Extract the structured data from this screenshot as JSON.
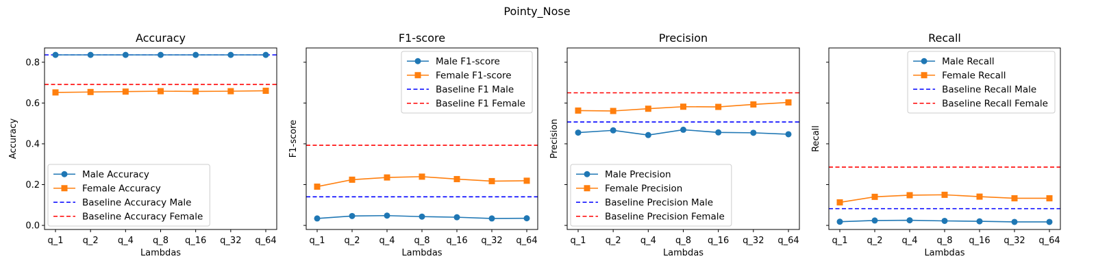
{
  "suptitle": "Pointy_Nose",
  "colors": {
    "male": "#1f77b4",
    "female": "#ff7f0e",
    "baseline_male": "#0000ff",
    "baseline_female": "#ff0000"
  },
  "chart_data": [
    {
      "type": "line",
      "title": "Accuracy",
      "xlabel": "Lambdas",
      "ylabel": "Accuracy",
      "categories": [
        "q_1",
        "q_2",
        "q_4",
        "q_8",
        "q_16",
        "q_32",
        "q_64"
      ],
      "ylim": [
        -0.02,
        0.87
      ],
      "yticks": [
        0.0,
        0.2,
        0.4,
        0.6,
        0.8
      ],
      "ytick_labels": [
        "0.0",
        "0.2",
        "0.4",
        "0.6",
        "0.8"
      ],
      "legend_position": "lower-left",
      "series": [
        {
          "name": "Male Accuracy",
          "marker": "circle",
          "color_key": "male",
          "values": [
            0.836,
            0.836,
            0.836,
            0.836,
            0.836,
            0.836,
            0.836
          ]
        },
        {
          "name": "Female Accuracy",
          "marker": "square",
          "color_key": "female",
          "values": [
            0.652,
            0.654,
            0.656,
            0.658,
            0.657,
            0.658,
            0.66
          ]
        }
      ],
      "baselines": [
        {
          "name": "Baseline Accuracy Male",
          "color_key": "baseline_male",
          "value": 0.836
        },
        {
          "name": "Baseline Accuracy Female",
          "color_key": "baseline_female",
          "value": 0.691
        }
      ]
    },
    {
      "type": "line",
      "title": "F1-score",
      "xlabel": "Lambdas",
      "ylabel": "F1-score",
      "categories": [
        "q_1",
        "q_2",
        "q_4",
        "q_8",
        "q_16",
        "q_32",
        "q_64"
      ],
      "ylim": [
        -0.02,
        0.87
      ],
      "yticks": [
        0.0,
        0.2,
        0.4,
        0.6,
        0.8
      ],
      "ytick_labels": [
        "",
        "",
        "",
        "",
        ""
      ],
      "legend_position": "upper-right",
      "series": [
        {
          "name": "Male F1-score",
          "marker": "circle",
          "color_key": "male",
          "values": [
            0.034,
            0.046,
            0.048,
            0.043,
            0.04,
            0.034,
            0.035
          ]
        },
        {
          "name": "Female F1-score",
          "marker": "square",
          "color_key": "female",
          "values": [
            0.19,
            0.224,
            0.235,
            0.239,
            0.227,
            0.217,
            0.219
          ]
        }
      ],
      "baselines": [
        {
          "name": "Baseline F1 Male",
          "color_key": "baseline_male",
          "value": 0.14
        },
        {
          "name": "Baseline F1 Female",
          "color_key": "baseline_female",
          "value": 0.393
        }
      ]
    },
    {
      "type": "line",
      "title": "Precision",
      "xlabel": "Lambdas",
      "ylabel": "Precision",
      "categories": [
        "q_1",
        "q_2",
        "q_4",
        "q_8",
        "q_16",
        "q_32",
        "q_64"
      ],
      "ylim": [
        -0.02,
        0.87
      ],
      "yticks": [
        0.0,
        0.2,
        0.4,
        0.6,
        0.8
      ],
      "ytick_labels": [
        "",
        "",
        "",
        "",
        ""
      ],
      "legend_position": "lower-left",
      "series": [
        {
          "name": "Male Precision",
          "marker": "circle",
          "color_key": "male",
          "values": [
            0.455,
            0.466,
            0.443,
            0.469,
            0.456,
            0.454,
            0.447
          ]
        },
        {
          "name": "Female Precision",
          "marker": "square",
          "color_key": "female",
          "values": [
            0.563,
            0.561,
            0.572,
            0.582,
            0.581,
            0.593,
            0.603
          ]
        }
      ],
      "baselines": [
        {
          "name": "Baseline Precision Male",
          "color_key": "baseline_male",
          "value": 0.507
        },
        {
          "name": "Baseline Precision Female",
          "color_key": "baseline_female",
          "value": 0.65
        }
      ]
    },
    {
      "type": "line",
      "title": "Recall",
      "xlabel": "Lambdas",
      "ylabel": "Recall",
      "categories": [
        "q_1",
        "q_2",
        "q_4",
        "q_8",
        "q_16",
        "q_32",
        "q_64"
      ],
      "ylim": [
        -0.02,
        0.87
      ],
      "yticks": [
        0.0,
        0.2,
        0.4,
        0.6,
        0.8
      ],
      "ytick_labels": [
        "",
        "",
        "",
        "",
        ""
      ],
      "legend_position": "upper-right",
      "series": [
        {
          "name": "Male Recall",
          "marker": "circle",
          "color_key": "male",
          "values": [
            0.018,
            0.024,
            0.025,
            0.022,
            0.02,
            0.017,
            0.017
          ]
        },
        {
          "name": "Female Recall",
          "marker": "square",
          "color_key": "female",
          "values": [
            0.113,
            0.14,
            0.148,
            0.15,
            0.141,
            0.133,
            0.133
          ]
        }
      ],
      "baselines": [
        {
          "name": "Baseline Recall Male",
          "color_key": "baseline_male",
          "value": 0.082
        },
        {
          "name": "Baseline Recall Female",
          "color_key": "baseline_female",
          "value": 0.286
        }
      ]
    }
  ]
}
